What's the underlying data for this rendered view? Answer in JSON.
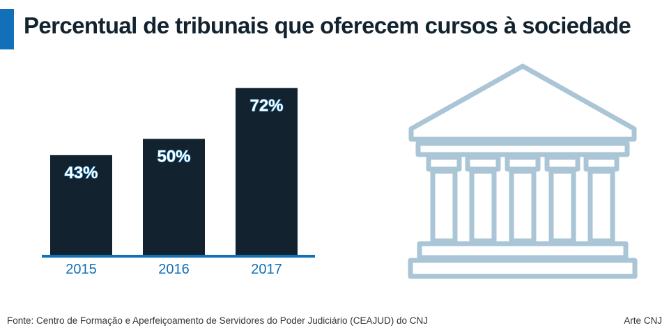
{
  "title": "Percentual de tribunais que oferecem cursos à sociedade",
  "source": "Fonte: Centro de Formação e Aperfeiçoamento de Servidores do Poder Judiciário (CEAJUD) do CNJ",
  "credit": "Arte CNJ",
  "colors": {
    "accent": "#1170b8",
    "bar": "#12232f",
    "axis": "#1170b8",
    "tick_label": "#1170b8",
    "value_label": "#ffffff",
    "value_outline": "#1c8ad0",
    "temple_stroke": "#a9c5d6"
  },
  "icons": {
    "decoration": "courthouse-icon"
  },
  "chart_data": {
    "type": "bar",
    "categories": [
      "2015",
      "2016",
      "2017"
    ],
    "values": [
      43,
      50,
      72
    ],
    "value_labels": [
      "43%",
      "50%",
      "72%"
    ],
    "title": "Percentual de tribunais que oferecem cursos à sociedade",
    "xlabel": "",
    "ylabel": "",
    "ylim": [
      0,
      79
    ],
    "grid": false,
    "legend": "none"
  }
}
